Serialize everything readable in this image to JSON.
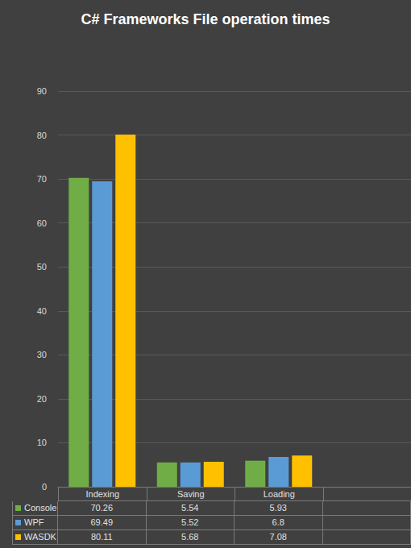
{
  "chart_data": {
    "type": "bar",
    "title": "C# Frameworks File operation times",
    "categories": [
      "Indexing",
      "Saving",
      "Loading",
      null
    ],
    "series": [
      {
        "name": "Console",
        "color": "#70ad47",
        "values": [
          70.26,
          5.54,
          5.93,
          null
        ]
      },
      {
        "name": "WPF",
        "color": "#5b9bd5",
        "values": [
          69.49,
          5.52,
          6.8,
          null
        ]
      },
      {
        "name": "WASDK",
        "color": "#ffc000",
        "values": [
          80.11,
          5.68,
          7.08,
          null
        ]
      }
    ],
    "ylim": [
      0,
      90
    ],
    "yticks": [
      0,
      10,
      20,
      30,
      40,
      50,
      60,
      70,
      80,
      90
    ],
    "grid": true
  }
}
